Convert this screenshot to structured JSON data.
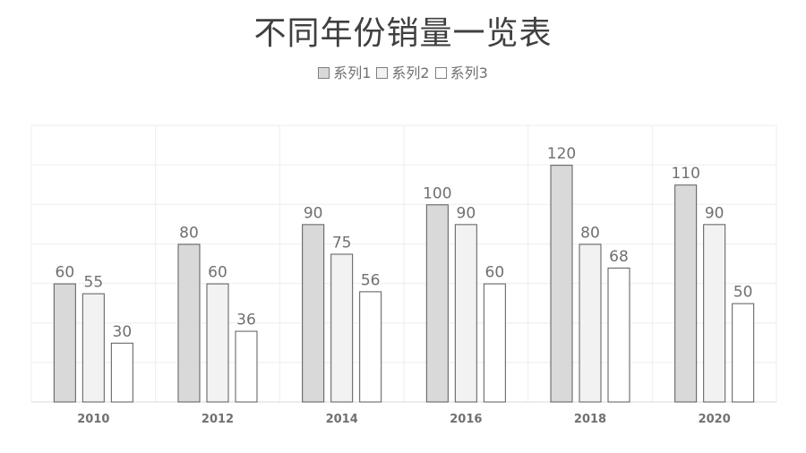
{
  "chart_data": {
    "type": "bar",
    "title": "不同年份销量一览表",
    "categories": [
      "2010",
      "2012",
      "2014",
      "2016",
      "2018",
      "2020"
    ],
    "series": [
      {
        "name": "系列1",
        "values": [
          60,
          80,
          90,
          100,
          120,
          110
        ],
        "color": "#d9d9d9"
      },
      {
        "name": "系列2",
        "values": [
          55,
          60,
          75,
          90,
          80,
          90
        ],
        "color": "#f2f2f2"
      },
      {
        "name": "系列3",
        "values": [
          30,
          36,
          56,
          60,
          68,
          50
        ],
        "color": "#ffffff"
      }
    ],
    "ylim": [
      0,
      140
    ],
    "grid": true,
    "legend_position": "top",
    "data_labels": true
  }
}
